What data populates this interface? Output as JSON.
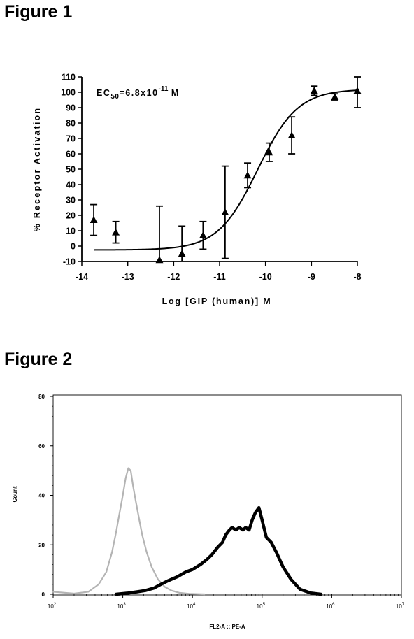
{
  "figure1": {
    "label": "Figure 1",
    "annotation": {
      "main": "EC",
      "sub": "50",
      "eq": "=6.8x10",
      "exp": "-11",
      "unit": " M"
    },
    "chart_data": {
      "type": "scatter",
      "xlabel": "Log [GIP (human)] M",
      "ylabel": "% Receptor Activation",
      "xlim": [
        -14,
        -8
      ],
      "ylim": [
        -10,
        110
      ],
      "xticks": [
        -14,
        -13,
        -12,
        -11,
        -10,
        -9,
        -8
      ],
      "xtick_labels": [
        "-14",
        "-13",
        "-12",
        "-11",
        "-10",
        "-9",
        "-8"
      ],
      "yticks": [
        -10,
        0,
        10,
        20,
        30,
        40,
        50,
        60,
        70,
        80,
        90,
        100,
        110
      ],
      "ytick_labels": [
        "-10",
        "0",
        "10",
        "20",
        "30",
        "40",
        "50",
        "60",
        "70",
        "80",
        "90",
        "100",
        "110"
      ],
      "series": [
        {
          "marker": "triangle",
          "points": [
            {
              "x": -13.74,
              "y": 17,
              "err": 10
            },
            {
              "x": -13.26,
              "y": 9,
              "err": 7
            },
            {
              "x": -12.31,
              "y": -9,
              "err": 35
            },
            {
              "x": -11.82,
              "y": -5,
              "err": 18
            },
            {
              "x": -11.36,
              "y": 7,
              "err": 9
            },
            {
              "x": -10.88,
              "y": 22,
              "err": 30
            },
            {
              "x": -10.39,
              "y": 46,
              "err": 8
            },
            {
              "x": -9.92,
              "y": 61,
              "err": 6
            },
            {
              "x": -9.43,
              "y": 72,
              "err": 12
            },
            {
              "x": -8.94,
              "y": 101,
              "err": 3
            },
            {
              "x": -8.49,
              "y": 97,
              "err": 2
            },
            {
              "x": -8.0,
              "y": 101,
              "err": 11
            }
          ]
        }
      ],
      "fit": {
        "type": "sigmoid",
        "logEC50": -10.17,
        "bottom": -2.5,
        "top": 102,
        "hill": 1.0,
        "x_from": -13.74,
        "x_to": -8.0
      }
    }
  },
  "figure2": {
    "label": "Figure 2",
    "chart_data": {
      "type": "area",
      "xlabel": "FL2-A :: PE-A",
      "ylabel": "Count",
      "x_scale": "log",
      "xlim": [
        100,
        10000000
      ],
      "ylim": [
        0,
        80
      ],
      "yticks": [
        0,
        20,
        40,
        60,
        80
      ],
      "ytick_labels": [
        "0",
        "20",
        "40",
        "60",
        "80"
      ],
      "xtick_labels": [
        {
          "base": "10",
          "exp": "2"
        },
        {
          "base": "10",
          "exp": "3"
        },
        {
          "base": "10",
          "exp": "4"
        },
        {
          "base": "10",
          "exp": "5"
        },
        {
          "base": "10",
          "exp": "6"
        },
        {
          "base": "10",
          "exp": "7"
        }
      ],
      "series": [
        {
          "color": "#b4b4b4",
          "x": [
            80,
            200,
            320,
            450,
            580,
            700,
            800,
            900,
            1000,
            1100,
            1200,
            1300,
            1400,
            1550,
            1700,
            1900,
            2200,
            2600,
            3200,
            4000,
            5000,
            6500,
            9000,
            15000
          ],
          "y": [
            1,
            0.3,
            1,
            4,
            9,
            17,
            25,
            33,
            40,
            47,
            51,
            50,
            44,
            37,
            31,
            24,
            17,
            11,
            6,
            3,
            1.5,
            0.6,
            0.2,
            0
          ]
        },
        {
          "color": "#000000",
          "x": [
            800,
            1200,
            1600,
            2100,
            2800,
            3500,
            4500,
            6000,
            8000,
            10000,
            13000,
            16000,
            19000,
            23000,
            27000,
            30000,
            34000,
            37000,
            42000,
            47000,
            53000,
            58000,
            65000,
            72000,
            80000,
            90000,
            100000,
            115000,
            135000,
            160000,
            200000,
            260000,
            350000,
            500000,
            700000
          ],
          "y": [
            0,
            0.5,
            1,
            1.5,
            2.5,
            4,
            5.5,
            7,
            9,
            10,
            12,
            14,
            16,
            19,
            21,
            24,
            26,
            27,
            26,
            27,
            26,
            27,
            26,
            30,
            33,
            35,
            30,
            23,
            21,
            17,
            11,
            6,
            2,
            0.5,
            0
          ]
        }
      ]
    }
  }
}
